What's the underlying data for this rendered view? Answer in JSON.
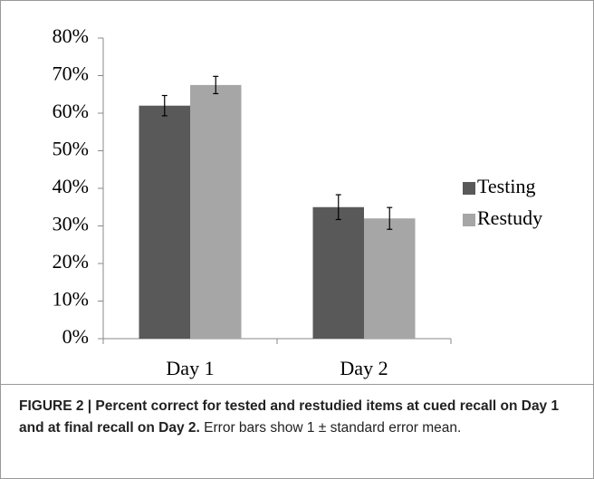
{
  "chart_data": {
    "type": "bar",
    "categories": [
      "Day 1",
      "Day 2"
    ],
    "series": [
      {
        "name": "Testing",
        "color": "#595959",
        "values": [
          62,
          35
        ],
        "errors": [
          2.7,
          3.3
        ]
      },
      {
        "name": "Restudy",
        "color": "#a6a6a6",
        "values": [
          67.5,
          32
        ],
        "errors": [
          2.3,
          2.9
        ]
      }
    ],
    "ylim": [
      0,
      80
    ],
    "yticks": [
      {
        "value": 0,
        "label": "0%"
      },
      {
        "value": 10,
        "label": "10%"
      },
      {
        "value": 20,
        "label": "20%"
      },
      {
        "value": 30,
        "label": "30%"
      },
      {
        "value": 40,
        "label": "40%"
      },
      {
        "value": 50,
        "label": "50%"
      },
      {
        "value": 60,
        "label": "60%"
      },
      {
        "value": 70,
        "label": "70%"
      },
      {
        "value": 80,
        "label": "80%"
      }
    ],
    "grid": false,
    "legend": "right"
  },
  "caption": {
    "title": "FIGURE 2 | Percent correct for tested and restudied items at cued recall on Day 1 and at final recall on Day 2.",
    "text": "Error bars show 1 ± standard error mean."
  }
}
